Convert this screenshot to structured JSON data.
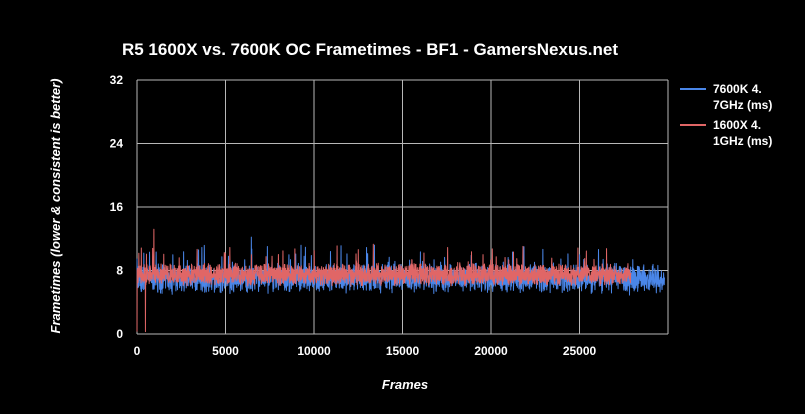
{
  "chart_data": {
    "type": "line",
    "title": "R5 1600X vs. 7600K OC Frametimes - BF1 - GamersNexus.net",
    "xlabel": "Frames",
    "ylabel": "Frametimes (lower & consistent is better)",
    "xlim": [
      0,
      30000
    ],
    "ylim": [
      0,
      32
    ],
    "x_ticks": [
      0,
      5000,
      10000,
      15000,
      20000,
      25000
    ],
    "y_ticks": [
      0,
      8,
      16,
      24,
      32
    ],
    "grid": true,
    "legend_position": "right",
    "series": [
      {
        "name_lines": [
          "7600K 4.",
          "7GHz (ms)"
        ],
        "color": "#4a86e8",
        "frames": 29800,
        "typical_range": [
          5,
          9
        ],
        "values": [
          9.5,
          6.2,
          7.1,
          8.8,
          5.0,
          6.9,
          7.4,
          10.6,
          6.0,
          7.2,
          8.1,
          5.3,
          6.8,
          12.2,
          7.0,
          6.4,
          8.9,
          5.5,
          7.3,
          9.8,
          6.6,
          7.5,
          10.4,
          5.8,
          7.1,
          8.4,
          6.3,
          11.2,
          7.0,
          5.2,
          7.8,
          9.3,
          6.5,
          7.2,
          5.4,
          8.6,
          7.0,
          6.1,
          9.9,
          7.6,
          5.6,
          7.2,
          8.2,
          6.4,
          11.0,
          7.1,
          5.3,
          8.0,
          6.8,
          10.1,
          7.3,
          5.7,
          7.5,
          9.4,
          6.2,
          7.0,
          4.9,
          8.5,
          7.2,
          6.0
        ]
      },
      {
        "name_lines": [
          "1600X 4.",
          "1GHz (ms)"
        ],
        "color": "#e06666",
        "frames": 27900,
        "typical_range": [
          6,
          9
        ],
        "values": [
          0.3,
          13.2,
          8.1,
          6.5,
          9.6,
          7.2,
          6.8,
          8.9,
          7.5,
          6.6,
          10.9,
          7.8,
          6.9,
          8.4,
          7.1,
          9.8,
          6.7,
          7.7,
          8.6,
          6.4,
          10.5,
          7.6,
          7.0,
          8.3,
          6.8,
          9.2,
          7.4,
          11.3,
          7.9,
          6.9,
          8.7,
          7.3,
          6.6,
          10.2,
          7.5,
          8.1,
          6.7,
          9.0,
          7.2,
          7.8,
          10.0,
          6.9,
          8.4,
          7.6,
          9.5,
          6.8,
          7.9,
          8.2,
          7.1,
          8.8,
          6.6,
          7.7,
          9.1,
          7.4,
          8.0,
          6.9,
          7.6,
          8.3
        ]
      }
    ]
  }
}
